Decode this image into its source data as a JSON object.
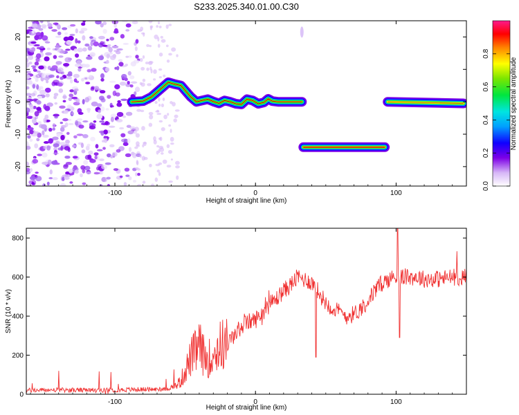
{
  "chart_data": [
    {
      "type": "heatmap",
      "title": "S233.2025.340.01.00.C30",
      "xlabel": "Height of straight line (km)",
      "ylabel": "Frequency (Hz)",
      "xlim": [
        -163,
        150
      ],
      "ylim": [
        -26,
        25
      ],
      "x_ticks": [
        -100,
        0,
        100
      ],
      "y_ticks": [
        20,
        10,
        0,
        -10,
        -20
      ],
      "colorbar": {
        "label": "Normalized spectral amplitude",
        "range": [
          0,
          1
        ],
        "ticks": [
          "0.0",
          "0.2",
          "0.4",
          "0.6",
          "0.8"
        ],
        "tick_values": [
          0,
          0.2,
          0.4,
          0.6,
          0.8
        ]
      },
      "tracks": [
        {
          "name": "scattered-signal",
          "points": [
            [
              -88,
              0
            ],
            [
              -80,
              0.2
            ],
            [
              -74,
              1.5
            ],
            [
              -70,
              3.0
            ],
            [
              -66,
              4.5
            ],
            [
              -62,
              6.0
            ],
            [
              -58,
              5.5
            ],
            [
              -53,
              5.0
            ],
            [
              -50,
              3.5
            ],
            [
              -46,
              1.5
            ],
            [
              -42,
              0
            ],
            [
              -38,
              0.4
            ],
            [
              -34,
              0.8
            ],
            [
              -30,
              0.1
            ],
            [
              -26,
              -0.5
            ],
            [
              -22,
              0.4
            ],
            [
              -18,
              0.0
            ],
            [
              -14,
              -0.6
            ],
            [
              -10,
              -0.8
            ],
            [
              -6,
              0.8
            ],
            [
              -2,
              0.4
            ],
            [
              2,
              -0.6
            ],
            [
              6,
              -0.2
            ],
            [
              9,
              0.9
            ],
            [
              12,
              0.2
            ],
            [
              16,
              0.0
            ],
            [
              24,
              0.0
            ],
            [
              33,
              0.0
            ]
          ]
        },
        {
          "name": "lower-band",
          "points": [
            [
              34,
              -14
            ],
            [
              92,
              -14
            ]
          ]
        },
        {
          "name": "right-band",
          "points": [
            [
              94,
              0
            ],
            [
              148,
              -0.5
            ]
          ]
        }
      ]
    },
    {
      "type": "line",
      "xlabel": "Height of straight line (km)",
      "ylabel": "SNR (10 * v/v)",
      "xlim": [
        -163,
        150
      ],
      "ylim": [
        0,
        850
      ],
      "x_ticks": [
        -100,
        0,
        100
      ],
      "y_ticks": [
        0,
        200,
        400,
        600,
        800
      ],
      "color": "#f03030",
      "x": [
        -163,
        -140,
        -120,
        -100,
        -80,
        -70,
        -62,
        -57,
        -53,
        -50,
        -47,
        -45,
        -42,
        -40,
        -37,
        -34,
        -30,
        -25,
        -20,
        -15,
        -10,
        -5,
        0,
        5,
        10,
        15,
        20,
        25,
        30,
        34,
        38,
        42,
        45,
        50,
        55,
        60,
        65,
        70,
        75,
        80,
        85,
        90,
        95,
        100,
        105,
        110,
        115,
        120,
        130,
        140,
        150
      ],
      "y": [
        20,
        22,
        20,
        22,
        25,
        25,
        30,
        40,
        70,
        120,
        170,
        200,
        220,
        250,
        200,
        180,
        200,
        250,
        260,
        300,
        350,
        370,
        380,
        420,
        460,
        490,
        530,
        560,
        600,
        590,
        580,
        560,
        520,
        470,
        440,
        420,
        400,
        410,
        440,
        480,
        530,
        570,
        590,
        600,
        600,
        600,
        600,
        590,
        590,
        600,
        600
      ]
    }
  ]
}
